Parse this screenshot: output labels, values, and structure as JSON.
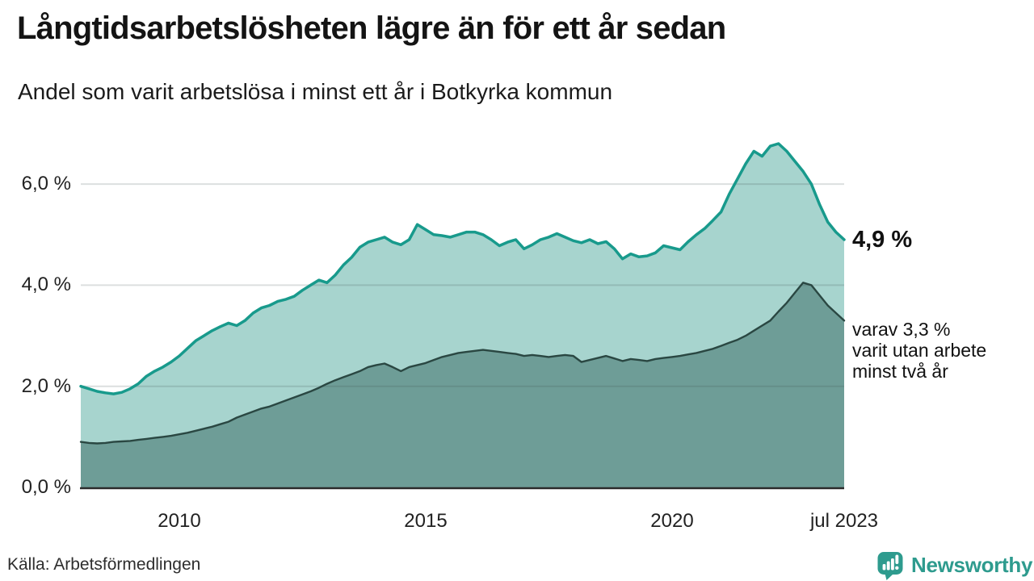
{
  "chart_data": {
    "type": "area",
    "title": "Långtidsarbetslösheten lägre än för ett år sedan",
    "subtitle": "Andel som varit arbetslösa i minst ett år i Botkyrka kommun",
    "xlabel": "",
    "ylabel": "",
    "x_start": "2008-01",
    "x_step_months": 2,
    "x_end": "2023-07",
    "ylim": [
      0,
      6.9
    ],
    "grid": "horizontal",
    "legend_position": "none",
    "y_ticks": [
      {
        "value": 0,
        "label": "0,0 %"
      },
      {
        "value": 2,
        "label": "2,0 %"
      },
      {
        "value": 4,
        "label": "4,0 %"
      },
      {
        "value": 6,
        "label": "6,0 %"
      }
    ],
    "x_ticks": [
      {
        "year": 2010.0,
        "label": "2010"
      },
      {
        "year": 2015.0,
        "label": "2015"
      },
      {
        "year": 2020.0,
        "label": "2020"
      },
      {
        "year": 2023.5,
        "label": "jul 2023"
      }
    ],
    "series": [
      {
        "name": "Andel som varit arbetslösa minst ett år",
        "line_color": "#189a8c",
        "fill_color": "#a7d4ce",
        "latest_value_pct": 4.9,
        "values": [
          2.0,
          1.95,
          1.9,
          1.87,
          1.85,
          1.88,
          1.95,
          2.05,
          2.2,
          2.3,
          2.38,
          2.48,
          2.6,
          2.75,
          2.9,
          3.0,
          3.1,
          3.18,
          3.25,
          3.2,
          3.3,
          3.45,
          3.55,
          3.6,
          3.68,
          3.72,
          3.78,
          3.9,
          4.0,
          4.1,
          4.05,
          4.2,
          4.4,
          4.55,
          4.75,
          4.85,
          4.9,
          4.95,
          4.85,
          4.8,
          4.9,
          5.2,
          5.1,
          5.0,
          4.98,
          4.95,
          5.0,
          5.05,
          5.05,
          5.0,
          4.9,
          4.78,
          4.85,
          4.9,
          4.72,
          4.8,
          4.9,
          4.95,
          5.02,
          4.95,
          4.88,
          4.84,
          4.9,
          4.82,
          4.86,
          4.72,
          4.52,
          4.62,
          4.56,
          4.58,
          4.64,
          4.78,
          4.74,
          4.7,
          4.86,
          5.0,
          5.12,
          5.28,
          5.45,
          5.8,
          6.1,
          6.4,
          6.65,
          6.55,
          6.75,
          6.8,
          6.65,
          6.45,
          6.25,
          6.0,
          5.6,
          5.25,
          5.05,
          4.9
        ]
      },
      {
        "name": "Andel som varit utan arbete minst två år",
        "line_color": "#2a4742",
        "fill_color": "#6e9d97",
        "latest_value_pct": 3.3,
        "values": [
          0.9,
          0.88,
          0.87,
          0.88,
          0.9,
          0.91,
          0.92,
          0.94,
          0.96,
          0.98,
          1.0,
          1.02,
          1.05,
          1.08,
          1.12,
          1.16,
          1.2,
          1.25,
          1.3,
          1.38,
          1.44,
          1.5,
          1.56,
          1.6,
          1.66,
          1.72,
          1.78,
          1.84,
          1.9,
          1.97,
          2.05,
          2.12,
          2.18,
          2.24,
          2.3,
          2.38,
          2.42,
          2.45,
          2.38,
          2.3,
          2.38,
          2.42,
          2.46,
          2.52,
          2.58,
          2.62,
          2.66,
          2.68,
          2.7,
          2.72,
          2.7,
          2.68,
          2.66,
          2.64,
          2.6,
          2.62,
          2.6,
          2.58,
          2.6,
          2.62,
          2.6,
          2.48,
          2.52,
          2.56,
          2.6,
          2.55,
          2.5,
          2.54,
          2.52,
          2.5,
          2.54,
          2.56,
          2.58,
          2.6,
          2.63,
          2.66,
          2.7,
          2.74,
          2.8,
          2.86,
          2.92,
          3.0,
          3.1,
          3.2,
          3.3,
          3.48,
          3.65,
          3.85,
          4.05,
          4.0,
          3.8,
          3.6,
          3.45,
          3.3
        ]
      }
    ],
    "annotations": {
      "latest_value": "4,9 %",
      "secondary_note": "varav 3,3 %\nvarit utan arbete\nminst två år"
    }
  },
  "footer": {
    "source": "Källa: Arbetsförmedlingen",
    "brand": "Newsworthy",
    "brand_color": "#2e9b8e"
  }
}
